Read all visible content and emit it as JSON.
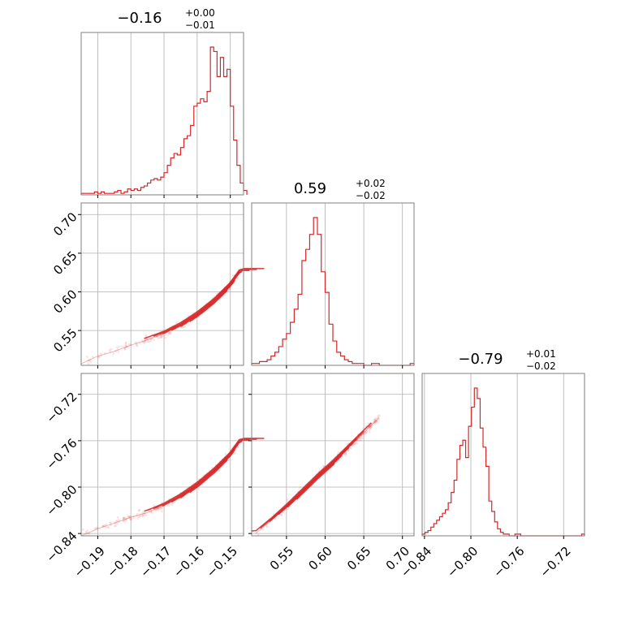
{
  "chart_data": {
    "type": "corner",
    "color": "#d62728",
    "grid": true,
    "variables": [
      {
        "range": [
          -0.195,
          -0.146
        ],
        "ticks": [
          -0.19,
          -0.18,
          -0.17,
          -0.16,
          -0.15
        ],
        "tick_labels": [
          "−0.19",
          "−0.18",
          "−0.17",
          "−0.16",
          "−0.15"
        ],
        "title": {
          "value": "−0.16",
          "plus": "+0.00",
          "minus": "−0.01"
        },
        "median": -0.156,
        "err_plus": 0.004,
        "err_minus": 0.006
      },
      {
        "range": [
          0.505,
          0.715
        ],
        "ticks": [
          0.55,
          0.6,
          0.65,
          0.7
        ],
        "tick_labels": [
          "0.55",
          "0.60",
          "0.65",
          "0.70"
        ],
        "title": {
          "value": "0.59",
          "plus": "+0.02",
          "minus": "−0.02"
        },
        "median": 0.59,
        "err_plus": 0.02,
        "err_minus": 0.02
      },
      {
        "range": [
          -0.842,
          -0.702
        ],
        "ticks": [
          -0.84,
          -0.8,
          -0.76,
          -0.72
        ],
        "tick_labels": [
          "−0.84",
          "−0.80",
          "−0.76",
          "−0.72"
        ],
        "title": {
          "value": "−0.79",
          "plus": "+0.01",
          "minus": "−0.02"
        },
        "median": -0.79,
        "err_plus": 0.01,
        "err_minus": 0.02
      }
    ],
    "histograms": [
      {
        "bin_start": -0.195,
        "bin_width": 0.001,
        "counts": [
          1,
          1,
          1,
          1,
          2,
          1,
          2,
          1,
          1,
          1,
          2,
          3,
          1,
          2,
          4,
          3,
          4,
          3,
          5,
          6,
          8,
          10,
          11,
          10,
          12,
          15,
          20,
          25,
          28,
          27,
          32,
          38,
          40,
          47,
          60,
          62,
          65,
          63,
          70,
          100,
          97,
          80,
          93,
          80,
          85,
          60,
          37,
          20,
          8,
          3
        ]
      },
      {
        "bin_start": 0.505,
        "bin_width": 0.005,
        "counts": [
          1,
          1,
          2,
          2,
          3,
          5,
          7,
          10,
          14,
          17,
          23,
          30,
          38,
          56,
          62,
          70,
          79,
          70,
          50,
          39,
          22,
          13,
          7,
          5,
          3,
          2,
          1,
          1,
          1,
          0,
          0,
          1,
          1,
          0,
          0,
          0,
          0,
          0,
          0,
          0,
          0,
          1
        ]
      },
      {
        "bin_start": -0.842,
        "bin_width": 0.0025,
        "counts": [
          1,
          2,
          3,
          5,
          7,
          9,
          11,
          13,
          15,
          19,
          25,
          32,
          44,
          52,
          55,
          45,
          63,
          74,
          85,
          79,
          62,
          51,
          40,
          20,
          14,
          8,
          4,
          2,
          1,
          1,
          0,
          0,
          1,
          1,
          0,
          0,
          0,
          0,
          0,
          0,
          0,
          0,
          0,
          0,
          0,
          0,
          0,
          0,
          0,
          0,
          0,
          0,
          0,
          0,
          0,
          1
        ]
      }
    ],
    "correlations": [
      {
        "xvar": 0,
        "yvar": 1,
        "x": [
          -0.195,
          -0.19,
          -0.185,
          -0.18,
          -0.175,
          -0.17,
          -0.165,
          -0.16,
          -0.155,
          -0.15,
          -0.147
        ],
        "y": [
          0.507,
          0.517,
          0.523,
          0.531,
          0.538,
          0.546,
          0.557,
          0.571,
          0.588,
          0.609,
          0.627
        ]
      },
      {
        "xvar": 0,
        "yvar": 2,
        "x": [
          -0.195,
          -0.19,
          -0.185,
          -0.18,
          -0.175,
          -0.17,
          -0.165,
          -0.16,
          -0.155,
          -0.15,
          -0.147
        ],
        "y": [
          -0.842,
          -0.836,
          -0.831,
          -0.826,
          -0.822,
          -0.816,
          -0.808,
          -0.798,
          -0.786,
          -0.772,
          -0.76
        ]
      },
      {
        "xvar": 1,
        "yvar": 2,
        "x": [
          0.51,
          0.53,
          0.55,
          0.57,
          0.59,
          0.61,
          0.63,
          0.65,
          0.67
        ],
        "y": [
          -0.84,
          -0.829,
          -0.817,
          -0.804,
          -0.791,
          -0.779,
          -0.766,
          -0.753,
          -0.74
        ]
      }
    ]
  }
}
